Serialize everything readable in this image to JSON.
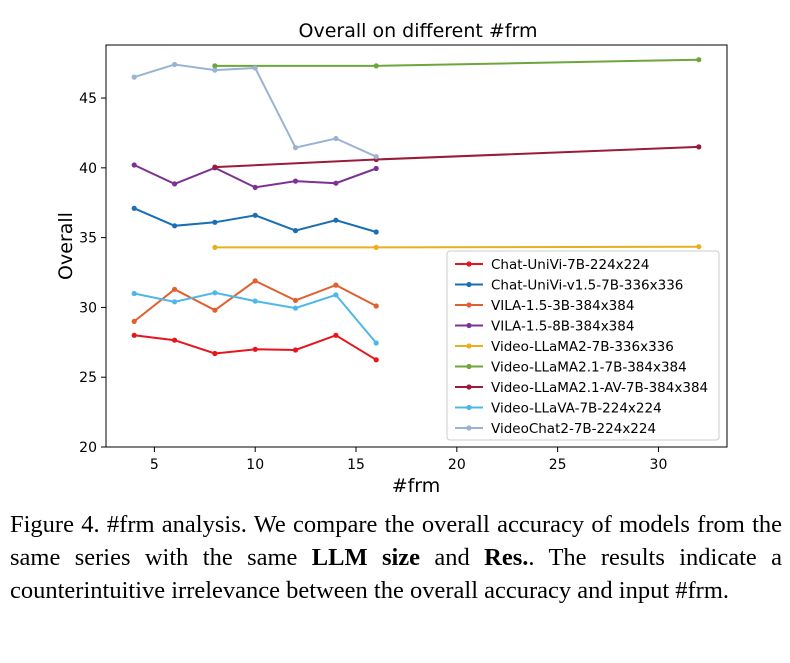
{
  "chart_data": {
    "type": "line",
    "title": "Overall on different #frm",
    "xlabel": "#frm",
    "ylabel": "Overall",
    "xlim": [
      2.6,
      33.4
    ],
    "ylim": [
      20,
      48.8
    ],
    "xticks": [
      5,
      10,
      15,
      20,
      25,
      30
    ],
    "yticks": [
      20,
      25,
      30,
      35,
      40,
      45
    ],
    "grid": false,
    "legend_position": "lower-right",
    "series": [
      {
        "name": "Chat-UniVi-7B-224x224",
        "color": "#e8141c",
        "x": [
          4,
          6,
          8,
          10,
          12,
          14,
          16
        ],
        "y": [
          28.0,
          27.65,
          26.7,
          27.0,
          26.95,
          28.0,
          26.25
        ]
      },
      {
        "name": "Chat-UniVi-v1.5-7B-336x336",
        "color": "#1a6eb3",
        "x": [
          4,
          6,
          8,
          10,
          12,
          14,
          16
        ],
        "y": [
          37.1,
          35.85,
          36.1,
          36.6,
          35.5,
          36.25,
          35.4
        ]
      },
      {
        "name": "VILA-1.5-3B-384x384",
        "color": "#e0602f",
        "x": [
          4,
          6,
          8,
          10,
          12,
          14,
          16
        ],
        "y": [
          29.0,
          31.3,
          29.8,
          31.9,
          30.5,
          31.6,
          30.1
        ]
      },
      {
        "name": "VILA-1.5-8B-384x384",
        "color": "#7b3294",
        "x": [
          4,
          6,
          8,
          10,
          12,
          14,
          16
        ],
        "y": [
          40.2,
          38.85,
          40.0,
          38.6,
          39.05,
          38.9,
          39.95
        ]
      },
      {
        "name": "Video-LLaMA2-7B-336x336",
        "color": "#e8b021",
        "x": [
          8,
          16,
          32
        ],
        "y": [
          34.3,
          34.3,
          34.35
        ]
      },
      {
        "name": "Video-LLaMA2.1-7B-384x384",
        "color": "#6ea63a",
        "x": [
          8,
          16,
          32
        ],
        "y": [
          47.3,
          47.3,
          47.75
        ]
      },
      {
        "name": "Video-LLaMA2.1-AV-7B-384x384",
        "color": "#9b1b3a",
        "x": [
          8,
          16,
          32
        ],
        "y": [
          40.05,
          40.6,
          41.5
        ]
      },
      {
        "name": "Video-LLaVA-7B-224x224",
        "color": "#4db8e8",
        "x": [
          4,
          6,
          8,
          10,
          12,
          14,
          16
        ],
        "y": [
          31.0,
          30.4,
          31.05,
          30.45,
          29.95,
          30.9,
          27.45
        ]
      },
      {
        "name": "VideoChat2-7B-224x224",
        "color": "#99b4d1",
        "x": [
          4,
          6,
          8,
          10,
          12,
          14,
          16
        ],
        "y": [
          46.5,
          47.4,
          47.0,
          47.15,
          41.45,
          42.1,
          40.8
        ]
      }
    ]
  },
  "caption": {
    "label": "Figure 4.",
    "text1": "#frm analysis.  We compare the overall accuracy of models from the same series with the same ",
    "bold1": "LLM size",
    "text2": " and ",
    "bold2": "Res.",
    "text3": ". The results indicate a counterintuitive irrelevance between the overall accuracy and input #frm."
  }
}
